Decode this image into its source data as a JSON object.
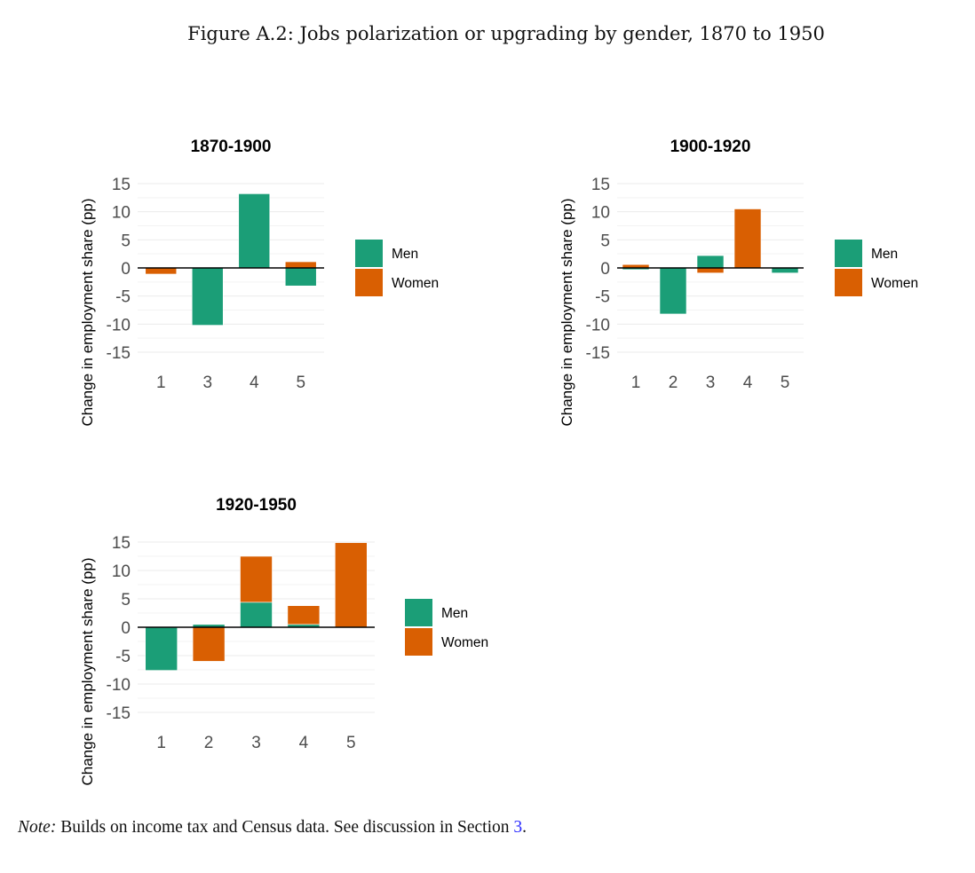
{
  "figure_title": "Figure A.2: Jobs polarization or upgrading by gender, 1870 to 1950",
  "note": {
    "label": "Note:",
    "text": " Builds on income tax and Census data. See discussion in Section ",
    "ref": "3",
    "end": "."
  },
  "colors": {
    "Men": "#1b9e77",
    "Women": "#d95f02"
  },
  "chart_data": [
    {
      "type": "bar",
      "stacked": true,
      "title": "1870-1900",
      "ylabel": "Change in employment share (pp)",
      "xlabel": "",
      "ylim": [
        -15,
        15
      ],
      "yticks": [
        "15",
        "10",
        "5",
        "0",
        "-5",
        "-10",
        "-15"
      ],
      "yticks_values": [
        15,
        10,
        5,
        0,
        -5,
        -10,
        -15
      ],
      "categories": [
        "1",
        "3",
        "4",
        "5"
      ],
      "series": [
        {
          "name": "Men",
          "values": [
            0,
            -10.2,
            13.2,
            -3.2
          ]
        },
        {
          "name": "Women",
          "values": [
            -1.1,
            0,
            0,
            1.1
          ]
        }
      ],
      "legend": "right",
      "grid": true
    },
    {
      "type": "bar",
      "stacked": true,
      "title": "1900-1920",
      "ylabel": "Change in employment share (pp)",
      "xlabel": "",
      "ylim": [
        -15,
        15
      ],
      "yticks": [
        "15",
        "10",
        "5",
        "0",
        "-5",
        "-10",
        "-15"
      ],
      "yticks_values": [
        15,
        10,
        5,
        0,
        -5,
        -10,
        -15
      ],
      "categories": [
        "1",
        "2",
        "3",
        "4",
        "5"
      ],
      "series": [
        {
          "name": "Men",
          "values": [
            -0.3,
            -8.2,
            2.2,
            0,
            -0.9
          ]
        },
        {
          "name": "Women",
          "values": [
            0.6,
            0,
            -0.9,
            10.5,
            0
          ]
        }
      ],
      "legend": "right",
      "grid": true
    },
    {
      "type": "bar",
      "stacked": true,
      "title": "1920-1950",
      "ylabel": "Change in employment share (pp)",
      "xlabel": "",
      "ylim": [
        -15,
        15
      ],
      "yticks": [
        "15",
        "10",
        "5",
        "0",
        "-5",
        "-10",
        "-15"
      ],
      "yticks_values": [
        15,
        10,
        5,
        0,
        -5,
        -10,
        -15
      ],
      "categories": [
        "1",
        "2",
        "3",
        "4",
        "5"
      ],
      "series": [
        {
          "name": "Men",
          "values": [
            -7.6,
            0.5,
            4.4,
            0.5,
            0
          ]
        },
        {
          "name": "Women",
          "values": [
            0,
            -6.0,
            8.1,
            3.3,
            14.9
          ]
        }
      ],
      "legend": "right",
      "grid": true
    }
  ]
}
